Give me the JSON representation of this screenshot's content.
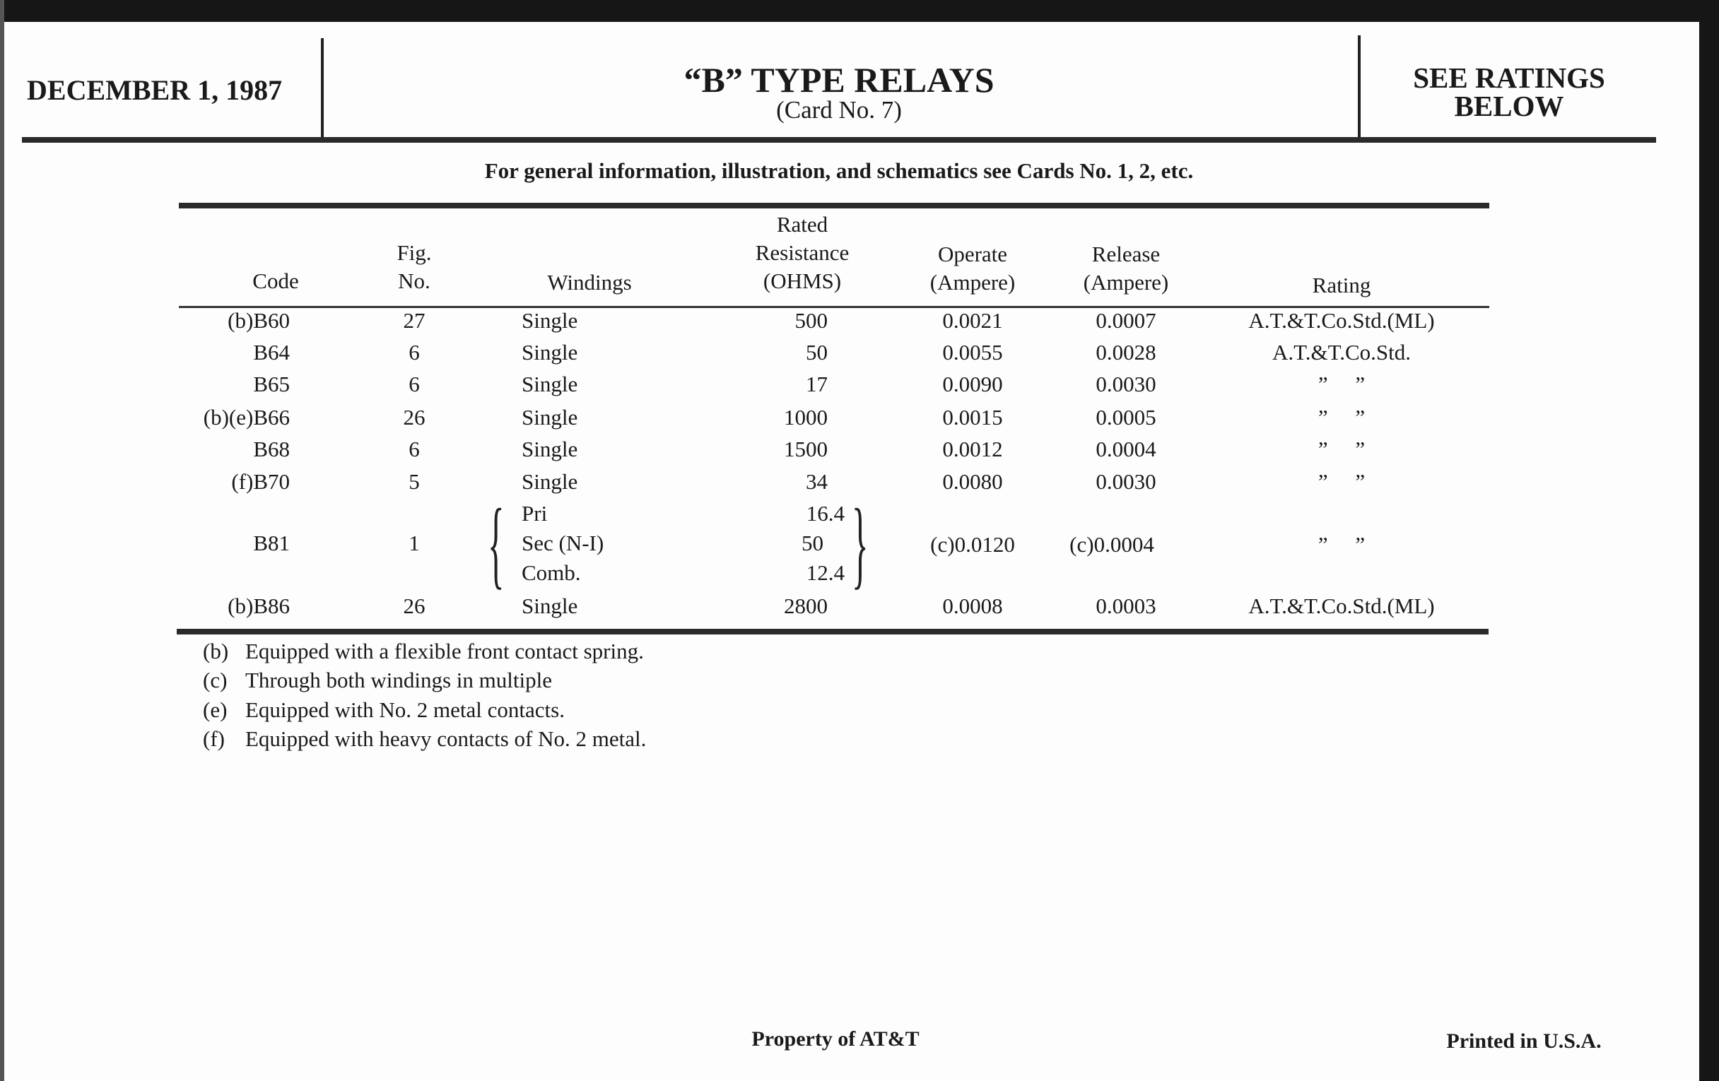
{
  "header": {
    "date": "DECEMBER 1, 1987",
    "title": "“B” TYPE RELAYS",
    "card": "(Card No. 7)",
    "ratings_line1": "SEE RATINGS",
    "ratings_line2": "BELOW"
  },
  "intro": "For general information, illustration, and schematics see Cards No. 1, 2, etc.",
  "table": {
    "headers": {
      "code": "Code",
      "fig1": "Fig.",
      "fig2": "No.",
      "windings": "Windings",
      "res1": "Rated",
      "res2": "Resistance",
      "res3": "(OHMS)",
      "op1": "Operate",
      "op2": "(Ampere)",
      "rel1": "Release",
      "rel2": "(Ampere)",
      "rating": "Rating"
    },
    "rows": [
      {
        "code": "(b)B60",
        "fig": "27",
        "windings": "Single",
        "resistance": "500",
        "operate": "0.0021",
        "release": "0.0007",
        "rating": "A.T.&T.Co.Std.(ML)"
      },
      {
        "code": "B64",
        "fig": "6",
        "windings": "Single",
        "resistance": "50",
        "operate": "0.0055",
        "release": "0.0028",
        "rating": "A.T.&T.Co.Std."
      },
      {
        "code": "B65",
        "fig": "6",
        "windings": "Single",
        "resistance": "17",
        "operate": "0.0090",
        "release": "0.0030",
        "rating": "”     ”"
      },
      {
        "code": "(b)(e)B66",
        "fig": "26",
        "windings": "Single",
        "resistance": "1000",
        "operate": "0.0015",
        "release": "0.0005",
        "rating": "”     ”"
      },
      {
        "code": "B68",
        "fig": "6",
        "windings": "Single",
        "resistance": "1500",
        "operate": "0.0012",
        "release": "0.0004",
        "rating": "”     ”"
      },
      {
        "code": "(f)B70",
        "fig": "5",
        "windings": "Single",
        "resistance": "34",
        "operate": "0.0080",
        "release": "0.0030",
        "rating": "”     ”"
      }
    ],
    "b81": {
      "code": "B81",
      "fig": "1",
      "windings": [
        "Pri",
        "Sec (N-I)",
        "Comb."
      ],
      "resistance": [
        "16.4",
        "50",
        "12.4"
      ],
      "operate": "(c)0.0120",
      "release": "(c)0.0004",
      "rating": "”     ”"
    },
    "last": {
      "code": "(b)B86",
      "fig": "26",
      "windings": "Single",
      "resistance": "2800",
      "operate": "0.0008",
      "release": "0.0003",
      "rating": "A.T.&T.Co.Std.(ML)"
    }
  },
  "footnotes": [
    {
      "key": "(b)",
      "text": "Equipped with a flexible front contact spring."
    },
    {
      "key": "(c)",
      "text": "Through both windings in multiple"
    },
    {
      "key": "(e)",
      "text": "Equipped with No. 2 metal contacts."
    },
    {
      "key": "(f)",
      "text": "Equipped with heavy contacts of No. 2 metal."
    }
  ],
  "footer": {
    "property": "Property of AT&T",
    "printed": "Printed in U.S.A."
  }
}
